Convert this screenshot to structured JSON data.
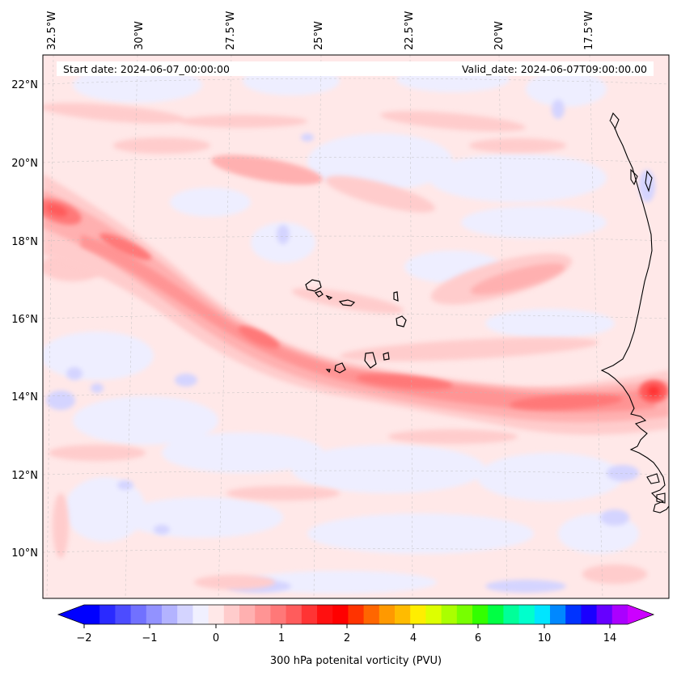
{
  "map": {
    "start_label": "Start date: 2024-06-07_00:00:00",
    "valid_label": "Valid_date: 2024-06-07T09:00:00.00",
    "lon_labels": [
      "32.5°W",
      "30°W",
      "27.5°W",
      "25°W",
      "22.5°W",
      "20°W",
      "17.5°W"
    ],
    "lat_labels": [
      "22°N",
      "20°N",
      "18°N",
      "16°N",
      "14°N",
      "12°N",
      "10°N"
    ]
  },
  "colorbar": {
    "label": "300 hPa potenital vorticity (PVU)",
    "tick_labels": [
      "−2",
      "−1",
      "0",
      "1",
      "2",
      "4",
      "6",
      "10",
      "14"
    ],
    "colors": [
      "#0000ff",
      "#2a2aff",
      "#4c4cff",
      "#7171ff",
      "#9292ff",
      "#b3b3ff",
      "#d4d4ff",
      "#f0f0ff",
      "#ffe8e8",
      "#ffcccc",
      "#ffb0b0",
      "#ff9494",
      "#ff7878",
      "#ff5c5c",
      "#ff3434",
      "#ff1010",
      "#ff0000",
      "#ff3300",
      "#ff6600",
      "#ff9900",
      "#ffbb00",
      "#ffee00",
      "#ddff00",
      "#aaff00",
      "#77ff00",
      "#33ff00",
      "#00ff44",
      "#00ff99",
      "#00ffcc",
      "#00e5ff",
      "#0088ff",
      "#0033ff",
      "#1a00ff",
      "#6600ff",
      "#aa00ff"
    ],
    "under_color": "#0000ff",
    "over_color": "#cc00ff"
  }
}
